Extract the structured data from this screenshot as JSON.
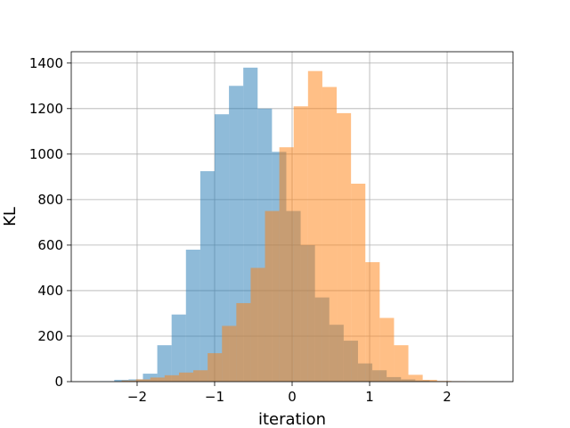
{
  "chart_data": {
    "type": "bar",
    "title": "",
    "xlabel": "iteration",
    "ylabel": "KL",
    "xlim": [
      -2.85,
      2.85
    ],
    "ylim": [
      0,
      1450
    ],
    "grid": true,
    "x_ticks": [
      -2,
      -1,
      0,
      1,
      2
    ],
    "x_tick_labels": [
      "−2",
      "−1",
      "0",
      "1",
      "2"
    ],
    "y_ticks": [
      0,
      200,
      400,
      600,
      800,
      1000,
      1200,
      1400
    ],
    "y_tick_labels": [
      "0",
      "200",
      "400",
      "600",
      "800",
      "1000",
      "1200",
      "1400"
    ],
    "series": [
      {
        "color": "#1f77b4",
        "opacity": 0.5,
        "bin_edges": [
          -2.48,
          -2.295,
          -2.11,
          -1.925,
          -1.74,
          -1.555,
          -1.37,
          -1.185,
          -1.0,
          -0.815,
          -0.63,
          -0.445,
          -0.26,
          -0.075,
          0.11,
          0.295,
          0.48,
          0.665,
          0.85,
          1.035,
          1.22,
          1.405,
          1.59,
          1.775,
          1.96,
          2.145,
          2.33,
          2.515
        ],
        "counts": [
          2,
          8,
          10,
          35,
          160,
          295,
          580,
          925,
          1175,
          1300,
          1380,
          1200,
          1010,
          750,
          600,
          370,
          250,
          180,
          80,
          50,
          20,
          10,
          5,
          2,
          1,
          0,
          0
        ]
      },
      {
        "color": "#ff7f0e",
        "opacity": 0.5,
        "bin_edges": [
          -2.2,
          -2.015,
          -1.83,
          -1.645,
          -1.46,
          -1.275,
          -1.09,
          -0.905,
          -0.72,
          -0.535,
          -0.35,
          -0.165,
          0.02,
          0.205,
          0.39,
          0.575,
          0.76,
          0.945,
          1.13,
          1.315,
          1.5,
          1.685,
          1.87,
          2.055,
          2.24,
          2.425,
          2.61
        ],
        "counts": [
          5,
          10,
          18,
          28,
          40,
          50,
          125,
          245,
          345,
          500,
          750,
          1030,
          1210,
          1365,
          1295,
          1180,
          870,
          525,
          280,
          160,
          30,
          8,
          3,
          2,
          1,
          1
        ]
      }
    ]
  }
}
